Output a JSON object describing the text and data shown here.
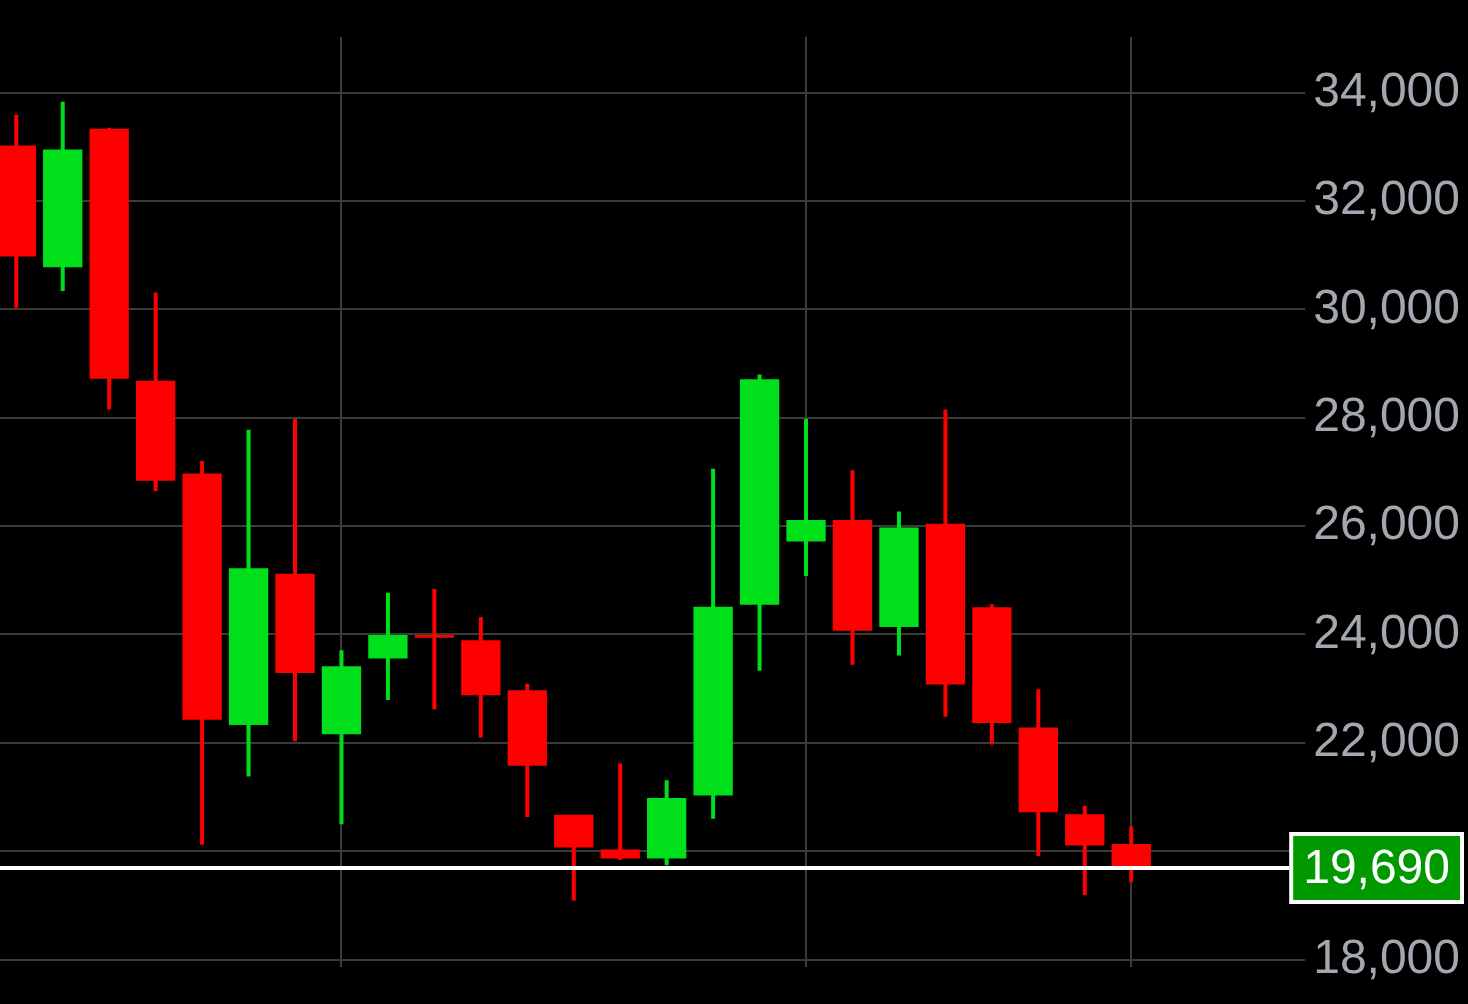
{
  "chart_data": {
    "type": "candlestick",
    "categories": [
      null,
      null,
      null,
      null,
      null,
      null,
      null,
      null,
      null,
      null,
      null,
      null,
      null,
      null,
      null,
      null,
      null,
      null,
      null,
      null,
      null,
      null,
      null,
      null,
      null
    ],
    "ohlc": [
      [
        33010,
        33590,
        30030,
        30990
      ],
      [
        30790,
        33830,
        30340,
        32940
      ],
      [
        33320,
        33350,
        28150,
        28730
      ],
      [
        28670,
        30310,
        26650,
        26850
      ],
      [
        26960,
        27200,
        20120,
        22440
      ],
      [
        22340,
        27780,
        21380,
        25210
      ],
      [
        25110,
        27980,
        22030,
        23300
      ],
      [
        22170,
        23710,
        20500,
        23400
      ],
      [
        23570,
        24770,
        22790,
        23980
      ],
      [
        23980,
        24840,
        22620,
        23950
      ],
      [
        23880,
        24320,
        22100,
        22890
      ],
      [
        22960,
        23090,
        20630,
        21590
      ],
      [
        20660,
        20660,
        19090,
        20080
      ],
      [
        20020,
        21620,
        19840,
        19880
      ],
      [
        19880,
        21310,
        19740,
        20970
      ],
      [
        21040,
        27060,
        20600,
        24500
      ],
      [
        24560,
        28800,
        23330,
        28700
      ],
      [
        25730,
        27980,
        25080,
        26100
      ],
      [
        26100,
        27030,
        23440,
        24080
      ],
      [
        24150,
        26270,
        23610,
        25960
      ],
      [
        26030,
        28150,
        22480,
        23090
      ],
      [
        24490,
        24560,
        21970,
        22380
      ],
      [
        22270,
        22990,
        19910,
        20730
      ],
      [
        20670,
        20840,
        19190,
        20120
      ],
      [
        20120,
        20460,
        19430,
        19690
      ]
    ],
    "ylim": [
      17860,
      35030
    ],
    "yticks": [
      {
        "value": 18000,
        "label": "18,000"
      },
      {
        "value": 20000,
        "label": null
      },
      {
        "value": 22000,
        "label": "22,000"
      },
      {
        "value": 24000,
        "label": "24,000"
      },
      {
        "value": 26000,
        "label": "26,000"
      },
      {
        "value": 28000,
        "label": "28,000"
      },
      {
        "value": 30000,
        "label": "30,000"
      },
      {
        "value": 32000,
        "label": "32,000"
      },
      {
        "value": 34000,
        "label": "34,000"
      }
    ],
    "grid": true,
    "tick_labels": "y",
    "ref_lines": [
      {
        "axis": "y",
        "value": 19690,
        "label": "19,690",
        "color": "#ffffff"
      }
    ]
  }
}
